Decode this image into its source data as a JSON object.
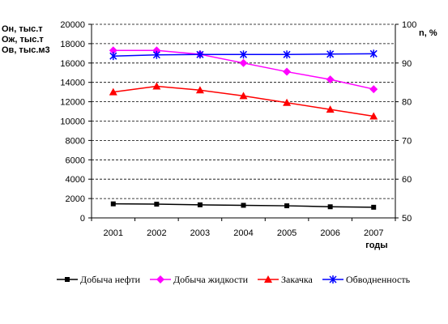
{
  "chart_data": {
    "type": "line",
    "x": [
      "2001",
      "2002",
      "2003",
      "2004",
      "2005",
      "2006",
      "2007"
    ],
    "xlabel": "годы",
    "ylabel_left": [
      "Он, тыс.т",
      "Ож, тыс.т",
      "Ов, тыс.м3"
    ],
    "ylabel_right": "n, %",
    "ylim_left": [
      0,
      20000
    ],
    "ylim_right": [
      50,
      100
    ],
    "yticks_left": [
      "0",
      "2000",
      "4000",
      "6000",
      "8000",
      "10000",
      "12000",
      "14000",
      "16000",
      "18000",
      "20000"
    ],
    "yticks_right": [
      "50",
      "60",
      "70",
      "80",
      "90",
      "100"
    ],
    "grid": "horizontal-dashed",
    "legend_position": "bottom",
    "series": [
      {
        "name": "Добыча нефти",
        "axis": "left",
        "marker": "square",
        "color": "#000000",
        "values": [
          1450,
          1420,
          1350,
          1300,
          1250,
          1150,
          1100
        ]
      },
      {
        "name": "Добыча жидкости",
        "axis": "left",
        "marker": "diamond",
        "color": "#ff00ff",
        "values": [
          17300,
          17300,
          16900,
          16000,
          15100,
          14300,
          13300
        ]
      },
      {
        "name": "Закачка",
        "axis": "left",
        "marker": "triangle",
        "color": "#ff0000",
        "values": [
          13000,
          13600,
          13200,
          12600,
          11900,
          11200,
          10500
        ]
      },
      {
        "name": "Обводненность",
        "axis": "right",
        "marker": "star",
        "color": "#0000ff",
        "values": [
          91.8,
          92.1,
          92.2,
          92.2,
          92.2,
          92.3,
          92.4
        ]
      }
    ]
  }
}
